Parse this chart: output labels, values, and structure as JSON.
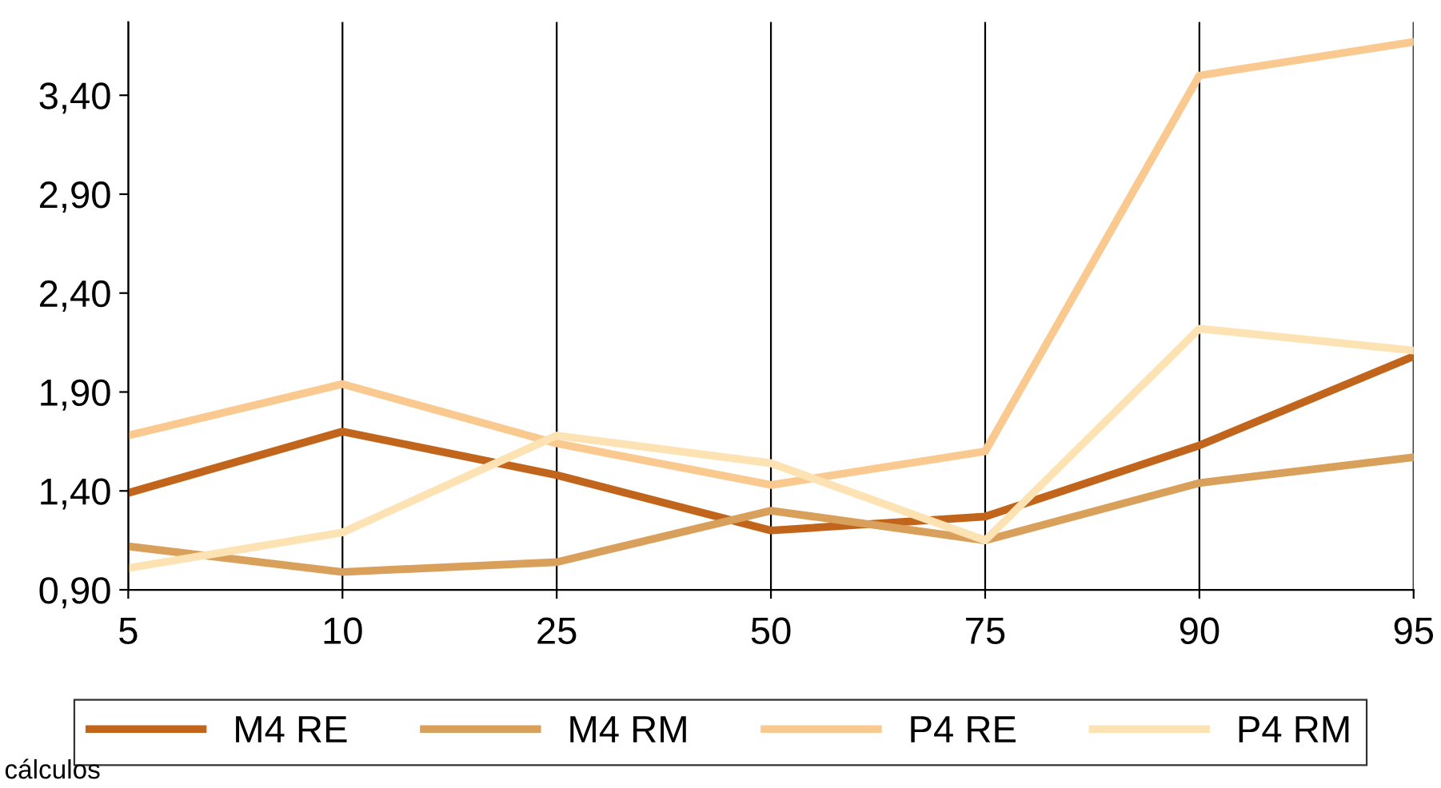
{
  "chart_data": {
    "type": "line",
    "categories": [
      "5",
      "10",
      "25",
      "50",
      "75",
      "90",
      "95"
    ],
    "series": [
      {
        "name": "M4 RE",
        "color": "#c0651b",
        "values": [
          1.39,
          1.7,
          1.48,
          1.2,
          1.27,
          1.63,
          2.08
        ]
      },
      {
        "name": "M4 RM",
        "color": "#d9a05b",
        "values": [
          1.12,
          0.99,
          1.04,
          1.3,
          1.15,
          1.44,
          1.57
        ]
      },
      {
        "name": "P4 RE",
        "color": "#f9c98f",
        "values": [
          1.68,
          1.94,
          1.64,
          1.43,
          1.6,
          3.5,
          3.67
        ]
      },
      {
        "name": "P4 RM",
        "color": "#fde3b3",
        "values": [
          1.01,
          1.19,
          1.68,
          1.54,
          1.15,
          2.22,
          2.11
        ]
      }
    ],
    "ylim": [
      0.9,
      3.77
    ],
    "yticks": [
      {
        "value": 0.9,
        "label": "0,90"
      },
      {
        "value": 1.4,
        "label": "1,40"
      },
      {
        "value": 1.9,
        "label": "1,90"
      },
      {
        "value": 2.4,
        "label": "2,40"
      },
      {
        "value": 2.9,
        "label": "2,90"
      },
      {
        "value": 3.4,
        "label": "3,40"
      }
    ],
    "grid": "x",
    "legend": "bottom",
    "marker": "none",
    "line_style": "solid",
    "annotations": [
      "cálculos"
    ]
  }
}
